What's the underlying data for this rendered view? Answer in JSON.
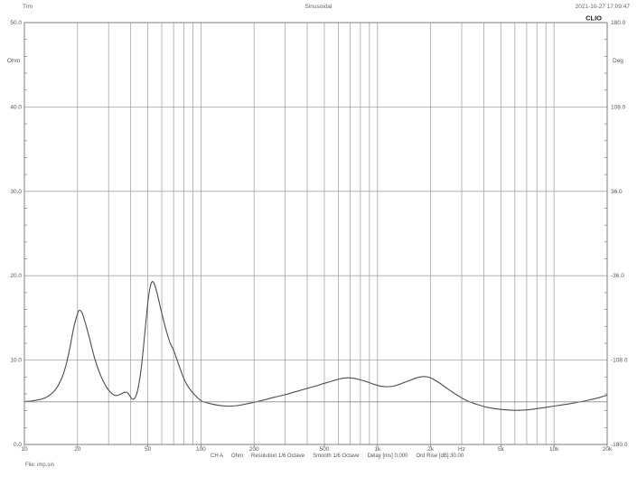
{
  "header": {
    "left": "Trm",
    "center": "Sinusoidal",
    "right": "2021-10-27 17:09:47",
    "brand": "CLIO"
  },
  "statusbar": {
    "items": [
      "CH A",
      "Ohm",
      "Resolution 1/6 Octave",
      "Smooth 1/6 Octave",
      "Delay [ms] 0.000",
      "Ord Rise [dB] 30.00"
    ]
  },
  "footer": {
    "file_label": "File: imp.sin"
  },
  "colors": {
    "grid": "#a6a6a6",
    "border": "#7d7d7d",
    "curve": "#4d4d4d",
    "reference": "#8c8c8c",
    "axis_text": "#555555",
    "brand_text": "#1a1a1a"
  },
  "chart_data": {
    "type": "line",
    "title": "Sinusoidal",
    "x_axis": {
      "label": "Hz",
      "scale": "log",
      "min": 10,
      "max": 20000,
      "tick_values": [
        10,
        20,
        50,
        100,
        200,
        500,
        1000,
        2000,
        5000,
        10000,
        20000
      ],
      "tick_labels": [
        "10",
        "20",
        "50",
        "100",
        "200",
        "500",
        "1k",
        "2k",
        "5k",
        "10k",
        "20k"
      ],
      "unit_label_position_hz": 3000
    },
    "y_axis_left": {
      "label": "Ohm",
      "min": 0,
      "max": 50,
      "ticks": [
        50,
        40,
        30,
        20,
        10,
        0
      ],
      "tick_labels": [
        "50.0",
        "40.0",
        "30.0",
        "20.0",
        "10.0",
        "0.0"
      ],
      "minor_tick_step": 2
    },
    "y_axis_right": {
      "label": "Deg",
      "min": -180,
      "max": 180,
      "ticks": [
        180,
        108,
        36,
        -36,
        -108,
        -180
      ],
      "tick_labels": [
        "180.0",
        "108.0",
        "36.0",
        "-36.0",
        "-108.0",
        "-180.0"
      ]
    },
    "grid": "on",
    "legend": "none",
    "series": [
      {
        "name": "impedance-modulus-ohm",
        "points": [
          [
            10,
            5.1
          ],
          [
            11,
            5.15
          ],
          [
            12,
            5.3
          ],
          [
            13,
            5.5
          ],
          [
            14,
            5.9
          ],
          [
            15,
            6.5
          ],
          [
            16,
            7.5
          ],
          [
            17,
            9.0
          ],
          [
            18,
            11.2
          ],
          [
            19,
            13.8
          ],
          [
            20,
            15.5
          ],
          [
            20.5,
            15.9
          ],
          [
            21.2,
            15.6
          ],
          [
            22,
            14.6
          ],
          [
            23.5,
            12.4
          ],
          [
            25,
            10.2
          ],
          [
            27,
            8.2
          ],
          [
            29,
            6.9
          ],
          [
            31,
            6.1
          ],
          [
            33,
            5.8
          ],
          [
            35,
            5.95
          ],
          [
            36.5,
            6.15
          ],
          [
            37.5,
            6.2
          ],
          [
            38.5,
            6.1
          ],
          [
            40,
            5.6
          ],
          [
            41,
            5.35
          ],
          [
            42.5,
            5.6
          ],
          [
            44,
            6.6
          ],
          [
            46,
            9.2
          ],
          [
            48,
            13.0
          ],
          [
            50,
            16.8
          ],
          [
            51.5,
            18.6
          ],
          [
            53,
            19.3
          ],
          [
            54.5,
            19.0
          ],
          [
            56.5,
            17.9
          ],
          [
            59,
            16.2
          ],
          [
            63,
            13.8
          ],
          [
            67,
            12.0
          ],
          [
            70,
            11.2
          ],
          [
            75,
            9.4
          ],
          [
            80,
            7.8
          ],
          [
            85,
            6.8
          ],
          [
            90,
            6.1
          ],
          [
            100,
            5.2
          ],
          [
            110,
            4.9
          ],
          [
            125,
            4.65
          ],
          [
            140,
            4.55
          ],
          [
            160,
            4.6
          ],
          [
            180,
            4.8
          ],
          [
            200,
            5.0
          ],
          [
            230,
            5.3
          ],
          [
            260,
            5.6
          ],
          [
            300,
            5.9
          ],
          [
            350,
            6.3
          ],
          [
            400,
            6.65
          ],
          [
            450,
            6.95
          ],
          [
            500,
            7.25
          ],
          [
            560,
            7.55
          ],
          [
            620,
            7.8
          ],
          [
            680,
            7.9
          ],
          [
            750,
            7.8
          ],
          [
            850,
            7.5
          ],
          [
            950,
            7.15
          ],
          [
            1050,
            6.9
          ],
          [
            1150,
            6.85
          ],
          [
            1250,
            6.95
          ],
          [
            1400,
            7.3
          ],
          [
            1550,
            7.65
          ],
          [
            1700,
            7.95
          ],
          [
            1850,
            8.05
          ],
          [
            2000,
            7.9
          ],
          [
            2200,
            7.4
          ],
          [
            2500,
            6.6
          ],
          [
            2800,
            5.9
          ],
          [
            3200,
            5.2
          ],
          [
            3600,
            4.8
          ],
          [
            4200,
            4.4
          ],
          [
            5000,
            4.15
          ],
          [
            6000,
            4.05
          ],
          [
            7000,
            4.1
          ],
          [
            8000,
            4.25
          ],
          [
            9000,
            4.4
          ],
          [
            10000,
            4.55
          ],
          [
            12000,
            4.8
          ],
          [
            14000,
            5.05
          ],
          [
            16000,
            5.3
          ],
          [
            18000,
            5.55
          ],
          [
            20000,
            5.85
          ]
        ]
      },
      {
        "name": "flat-reference-line",
        "flat_ohm": 5.05
      }
    ]
  }
}
